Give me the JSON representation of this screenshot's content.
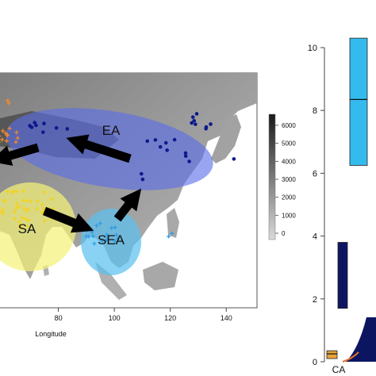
{
  "chart_data": [
    {
      "type": "scatter",
      "title": "",
      "xlabel": "Longitude",
      "ylabel": "",
      "xlim": [
        58,
        151
      ],
      "x_ticks": [
        80,
        100,
        120,
        140
      ],
      "colorbar": {
        "ticks": [
          0,
          1000,
          2000,
          3000,
          4000,
          5000,
          6000
        ],
        "colors": [
          "#d9d9d9",
          "#1a1a1a"
        ]
      },
      "regions": [
        {
          "name": "EA",
          "color": "#5a6ee8"
        },
        {
          "name": "SA",
          "color": "#f4f27a"
        },
        {
          "name": "SEA",
          "color": "#5cc0ee"
        }
      ],
      "point_groups": [
        {
          "region": "EA",
          "color": "#0d1a8c",
          "marker": "dot"
        },
        {
          "region": "SA",
          "color": "#f5d318",
          "marker": "plus"
        },
        {
          "region": "SEA",
          "color": "#2e9be8",
          "marker": "plus"
        },
        {
          "region": "CA",
          "color": "#f08a2c",
          "marker": "plus"
        }
      ],
      "migration_arrows": [
        {
          "from": "SA",
          "to": "SEA"
        },
        {
          "from": "SEA",
          "to": "EA"
        },
        {
          "from": "EA",
          "to": "CA"
        }
      ]
    },
    {
      "type": "box",
      "title": "",
      "xlabel": "",
      "ylabel": "",
      "ylim": [
        0,
        10
      ],
      "y_ticks": [
        0,
        2,
        4,
        6,
        8,
        10
      ],
      "categories": [
        "CA"
      ],
      "boxes": [
        {
          "color": "#33bbee",
          "low": 6.25,
          "median": 8.35,
          "high": 10.3
        },
        {
          "color": "#0c1660",
          "low": 1.7,
          "median": null,
          "high": 3.8
        },
        {
          "color": "#e8a23a",
          "low": 0.1,
          "median": 0.25,
          "high": 0.35
        }
      ]
    }
  ]
}
